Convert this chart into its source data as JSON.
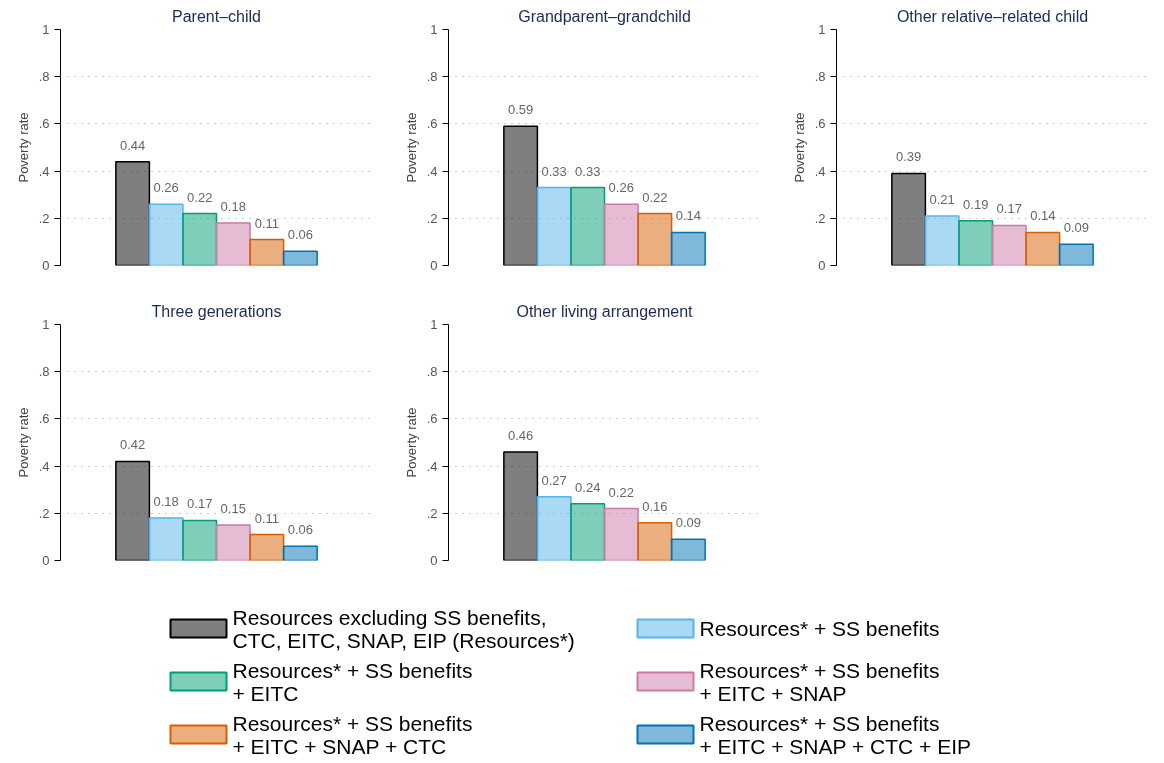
{
  "chart_data": [
    {
      "type": "bar",
      "title": "Parent–child",
      "ylabel": "Poverty rate",
      "categories": [
        null
      ],
      "ylim": [
        0,
        1
      ],
      "yticks": [
        0,
        {
          "value": 0.2,
          "label": ".2"
        },
        {
          "value": 0.4,
          "label": ".4"
        },
        {
          "value": 0.6,
          "label": ".6"
        },
        {
          "value": 0.8,
          "label": ".8"
        },
        1
      ],
      "grid": "y",
      "tick_labels": "y",
      "data_labels": true,
      "legend": "bottom",
      "series": [
        {
          "name": "Resources excluding SS benefits,\nCTC, EITC, SNAP, EIP (Resources*)",
          "color": "#000000",
          "values": [
            0.44
          ]
        },
        {
          "name": "Resources* + SS benefits",
          "color": "#56b4e9",
          "values": [
            0.26
          ]
        },
        {
          "name": "Resources* + SS benefits\n+ EITC",
          "color": "#009e73",
          "values": [
            0.22
          ]
        },
        {
          "name": "Resources* + SS benefits\n+ EITC + SNAP",
          "color": "#cc79a7",
          "values": [
            0.18
          ]
        },
        {
          "name": "Resources* + SS benefits\n+ EITC + SNAP + CTC",
          "color": "#d55e00",
          "values": [
            0.11
          ]
        },
        {
          "name": "Resources* + SS benefits\n+ EITC + SNAP + CTC + EIP",
          "color": "#0072b2",
          "values": [
            0.06
          ]
        }
      ]
    },
    {
      "type": "bar",
      "title": "Grandparent–grandchild",
      "ylabel": "Poverty rate",
      "categories": [
        null
      ],
      "ylim": [
        0,
        1
      ],
      "yticks": [
        0,
        {
          "value": 0.2,
          "label": ".2"
        },
        {
          "value": 0.4,
          "label": ".4"
        },
        {
          "value": 0.6,
          "label": ".6"
        },
        {
          "value": 0.8,
          "label": ".8"
        },
        1
      ],
      "grid": "y",
      "tick_labels": "y",
      "data_labels": true,
      "series": [
        {
          "color": "#000000",
          "values": [
            0.59
          ]
        },
        {
          "color": "#56b4e9",
          "values": [
            0.33
          ]
        },
        {
          "color": "#009e73",
          "values": [
            0.33
          ]
        },
        {
          "color": "#cc79a7",
          "values": [
            0.26
          ]
        },
        {
          "color": "#d55e00",
          "values": [
            0.22
          ]
        },
        {
          "color": "#0072b2",
          "values": [
            0.14
          ]
        }
      ]
    },
    {
      "type": "bar",
      "title": "Other relative–related child",
      "ylabel": "Poverty rate",
      "categories": [
        null
      ],
      "ylim": [
        0,
        1
      ],
      "yticks": [
        0,
        {
          "value": 0.2,
          "label": ".2"
        },
        {
          "value": 0.4,
          "label": ".4"
        },
        {
          "value": 0.6,
          "label": ".6"
        },
        {
          "value": 0.8,
          "label": ".8"
        },
        1
      ],
      "grid": "y",
      "tick_labels": "y",
      "data_labels": true,
      "series": [
        {
          "color": "#000000",
          "values": [
            0.39
          ]
        },
        {
          "color": "#56b4e9",
          "values": [
            0.21
          ]
        },
        {
          "color": "#009e73",
          "values": [
            0.19
          ]
        },
        {
          "color": "#cc79a7",
          "values": [
            0.17
          ]
        },
        {
          "color": "#d55e00",
          "values": [
            0.14
          ]
        },
        {
          "color": "#0072b2",
          "values": [
            0.09
          ]
        }
      ]
    },
    {
      "type": "bar",
      "title": "Three generations",
      "ylabel": "Poverty rate",
      "categories": [
        null
      ],
      "ylim": [
        0,
        1
      ],
      "yticks": [
        0,
        {
          "value": 0.2,
          "label": ".2"
        },
        {
          "value": 0.4,
          "label": ".4"
        },
        {
          "value": 0.6,
          "label": ".6"
        },
        {
          "value": 0.8,
          "label": ".8"
        },
        1
      ],
      "grid": "y",
      "tick_labels": "y",
      "data_labels": true,
      "series": [
        {
          "color": "#000000",
          "values": [
            0.42
          ]
        },
        {
          "color": "#56b4e9",
          "values": [
            0.18
          ]
        },
        {
          "color": "#009e73",
          "values": [
            0.17
          ]
        },
        {
          "color": "#cc79a7",
          "values": [
            0.15
          ]
        },
        {
          "color": "#d55e00",
          "values": [
            0.11
          ]
        },
        {
          "color": "#0072b2",
          "values": [
            0.06
          ]
        }
      ]
    },
    {
      "type": "bar",
      "title": "Other living arrangement",
      "ylabel": "Poverty rate",
      "categories": [
        null
      ],
      "ylim": [
        0,
        1
      ],
      "yticks": [
        0,
        {
          "value": 0.2,
          "label": ".2"
        },
        {
          "value": 0.4,
          "label": ".4"
        },
        {
          "value": 0.6,
          "label": ".6"
        },
        {
          "value": 0.8,
          "label": ".8"
        },
        1
      ],
      "grid": "y",
      "tick_labels": "y",
      "data_labels": true,
      "series": [
        {
          "color": "#000000",
          "values": [
            0.46
          ]
        },
        {
          "color": "#56b4e9",
          "values": [
            0.27
          ]
        },
        {
          "color": "#009e73",
          "values": [
            0.24
          ]
        },
        {
          "color": "#cc79a7",
          "values": [
            0.22
          ]
        },
        {
          "color": "#d55e00",
          "values": [
            0.16
          ]
        },
        {
          "color": "#0072b2",
          "values": [
            0.09
          ]
        }
      ]
    }
  ]
}
